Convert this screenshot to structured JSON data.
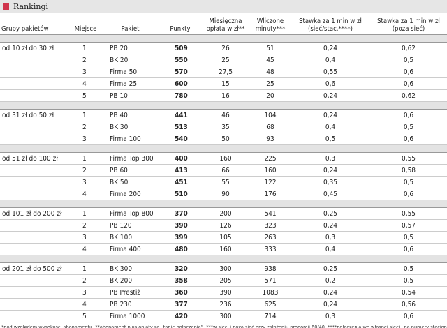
{
  "header": {
    "title": "Rankingi"
  },
  "table": {
    "columns": [
      "Grupy pakietów",
      "Miejsce",
      "Pakiet",
      "Punkty",
      "Miesięczna opłata w zł**",
      "Wliczone minuty***",
      "Stawka za 1 min w zł (sieć/stac.****)",
      "Stawka za 1 min w zł (poza sieć)"
    ],
    "groups": [
      {
        "label": "od 10 zł do 30 zł",
        "rows": [
          [
            "1",
            "PB 20",
            "509",
            "26",
            "51",
            "0,24",
            "0,62"
          ],
          [
            "2",
            "BK 20",
            "550",
            "25",
            "45",
            "0,4",
            "0,5"
          ],
          [
            "3",
            "Firma 50",
            "570",
            "27,5",
            "48",
            "0,55",
            "0,6"
          ],
          [
            "4",
            "Firma 25",
            "600",
            "15",
            "25",
            "0,6",
            "0,6"
          ],
          [
            "5",
            "PB 10",
            "780",
            "16",
            "20",
            "0,24",
            "0,62"
          ]
        ]
      },
      {
        "label": "od 31 zł do 50 zł",
        "rows": [
          [
            "1",
            "PB 40",
            "441",
            "46",
            "104",
            "0,24",
            "0,6"
          ],
          [
            "2",
            "BK 30",
            "513",
            "35",
            "68",
            "0,4",
            "0,5"
          ],
          [
            "3",
            "Firma 100",
            "540",
            "50",
            "93",
            "0,5",
            "0,6"
          ]
        ]
      },
      {
        "label": "od 51 zł do 100 zł",
        "rows": [
          [
            "1",
            "Firma Top 300",
            "400",
            "160",
            "225",
            "0,3",
            "0,55"
          ],
          [
            "2",
            "PB 60",
            "413",
            "66",
            "160",
            "0,24",
            "0,58"
          ],
          [
            "3",
            "BK 50",
            "451",
            "55",
            "122",
            "0,35",
            "0,5"
          ],
          [
            "4",
            "Firma 200",
            "510",
            "90",
            "176",
            "0,45",
            "0,6"
          ]
        ]
      },
      {
        "label": "od 101 zł do 200 zł",
        "rows": [
          [
            "1",
            "Firma Top 800",
            "370",
            "200",
            "541",
            "0,25",
            "0,55"
          ],
          [
            "2",
            "PB 120",
            "390",
            "126",
            "323",
            "0,24",
            "0,57"
          ],
          [
            "3",
            "BK 100",
            "399",
            "105",
            "263",
            "0,3",
            "0,5"
          ],
          [
            "4",
            "Firma 400",
            "480",
            "160",
            "333",
            "0,4",
            "0,6"
          ]
        ]
      },
      {
        "label": "od 201 zł do 500 zł",
        "rows": [
          [
            "1",
            "BK 300",
            "320",
            "300",
            "938",
            "0,25",
            "0,5"
          ],
          [
            "2",
            "BK 200",
            "358",
            "205",
            "571",
            "0,2",
            "0,5"
          ],
          [
            "3",
            "PB Prestiż",
            "360",
            "390",
            "1083",
            "0,24",
            "0,54"
          ],
          [
            "4",
            "PB 230",
            "377",
            "236",
            "625",
            "0,24",
            "0,56"
          ],
          [
            "5",
            "Firma 1000",
            "420",
            "300",
            "714",
            "0,3",
            "0,6"
          ]
        ]
      }
    ]
  },
  "footnotes": [
    "*pod względem wysokości abonamentu, **abonament plus opłaty za „tanie połączenia”, ***w sieci i poza sieć przy założeniu proporcji 60/40, ****połączenia we własnej sieci i na numery stacjonarne",
    "BK – PlusGSM Biznesklasa; Firma – Orange dla Firm; PB – Era Pakiet Biznes"
  ]
}
